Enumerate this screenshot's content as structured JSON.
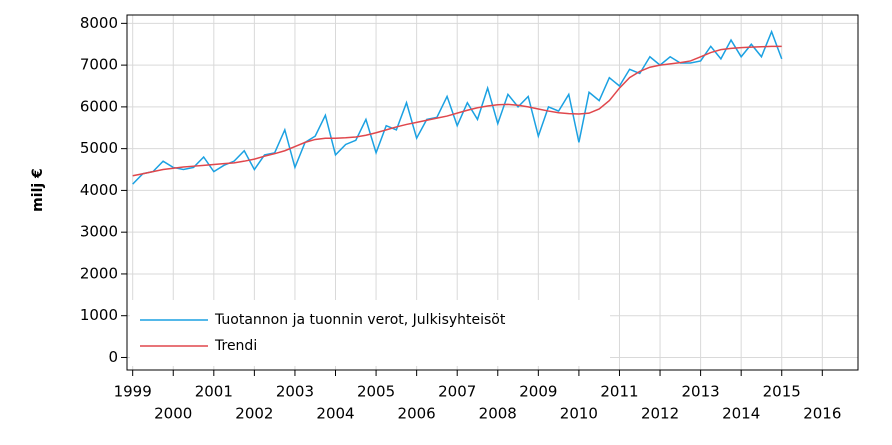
{
  "chart_data": {
    "type": "line",
    "y_label": "milj €",
    "x": [
      1999,
      1999.25,
      1999.5,
      1999.75,
      2000,
      2000.25,
      2000.5,
      2000.75,
      2001,
      2001.25,
      2001.5,
      2001.75,
      2002,
      2002.25,
      2002.5,
      2002.75,
      2003,
      2003.25,
      2003.5,
      2003.75,
      2004,
      2004.25,
      2004.5,
      2004.75,
      2005,
      2005.25,
      2005.5,
      2005.75,
      2006,
      2006.25,
      2006.5,
      2006.75,
      2007,
      2007.25,
      2007.5,
      2007.75,
      2008,
      2008.25,
      2008.5,
      2008.75,
      2009,
      2009.25,
      2009.5,
      2009.75,
      2010,
      2010.25,
      2010.5,
      2010.75,
      2011,
      2011.25,
      2011.5,
      2011.75,
      2012,
      2012.25,
      2012.5,
      2012.75,
      2013,
      2013.25,
      2013.5,
      2013.75,
      2014,
      2014.25,
      2014.5,
      2014.75,
      2015
    ],
    "series": [
      {
        "name": "Tuotannon ja tuonnin verot, Julkisyhteisöt",
        "color": "#1ba1e2",
        "values": [
          4150,
          4400,
          4450,
          4700,
          4550,
          4500,
          4550,
          4800,
          4450,
          4600,
          4700,
          4950,
          4500,
          4850,
          4900,
          5450,
          4550,
          5150,
          5300,
          5800,
          4850,
          5100,
          5200,
          5700,
          4900,
          5550,
          5450,
          6100,
          5250,
          5700,
          5750,
          6250,
          5550,
          6100,
          5700,
          6450,
          5600,
          6300,
          6000,
          6250,
          5300,
          6000,
          5900,
          6300,
          5150,
          6350,
          6150,
          6700,
          6500,
          6900,
          6800,
          7200,
          7000,
          7200,
          7050,
          7050,
          7100,
          7450,
          7150,
          7600,
          7200,
          7500,
          7200,
          7800,
          7150
        ]
      },
      {
        "name": "Trendi",
        "color": "#e0474c",
        "values": [
          4350,
          4400,
          4450,
          4500,
          4530,
          4560,
          4580,
          4600,
          4620,
          4640,
          4660,
          4700,
          4750,
          4820,
          4880,
          4950,
          5050,
          5150,
          5220,
          5250,
          5250,
          5260,
          5280,
          5320,
          5380,
          5450,
          5520,
          5580,
          5630,
          5680,
          5730,
          5780,
          5850,
          5920,
          5980,
          6020,
          6050,
          6060,
          6040,
          6000,
          5950,
          5900,
          5860,
          5840,
          5830,
          5850,
          5950,
          6150,
          6450,
          6700,
          6850,
          6950,
          7000,
          7030,
          7060,
          7100,
          7200,
          7300,
          7370,
          7400,
          7420,
          7430,
          7440,
          7450,
          7450
        ]
      }
    ],
    "xlim": [
      1998.86,
      2016.88
    ],
    "ylim": [
      -300,
      8200
    ],
    "xticks": [
      1999,
      2000,
      2001,
      2002,
      2003,
      2004,
      2005,
      2006,
      2007,
      2008,
      2009,
      2010,
      2011,
      2012,
      2013,
      2014,
      2015,
      2016
    ],
    "yticks": [
      0,
      1000,
      2000,
      3000,
      4000,
      5000,
      6000,
      7000,
      8000
    ],
    "grid": true,
    "legend": "lower left"
  }
}
